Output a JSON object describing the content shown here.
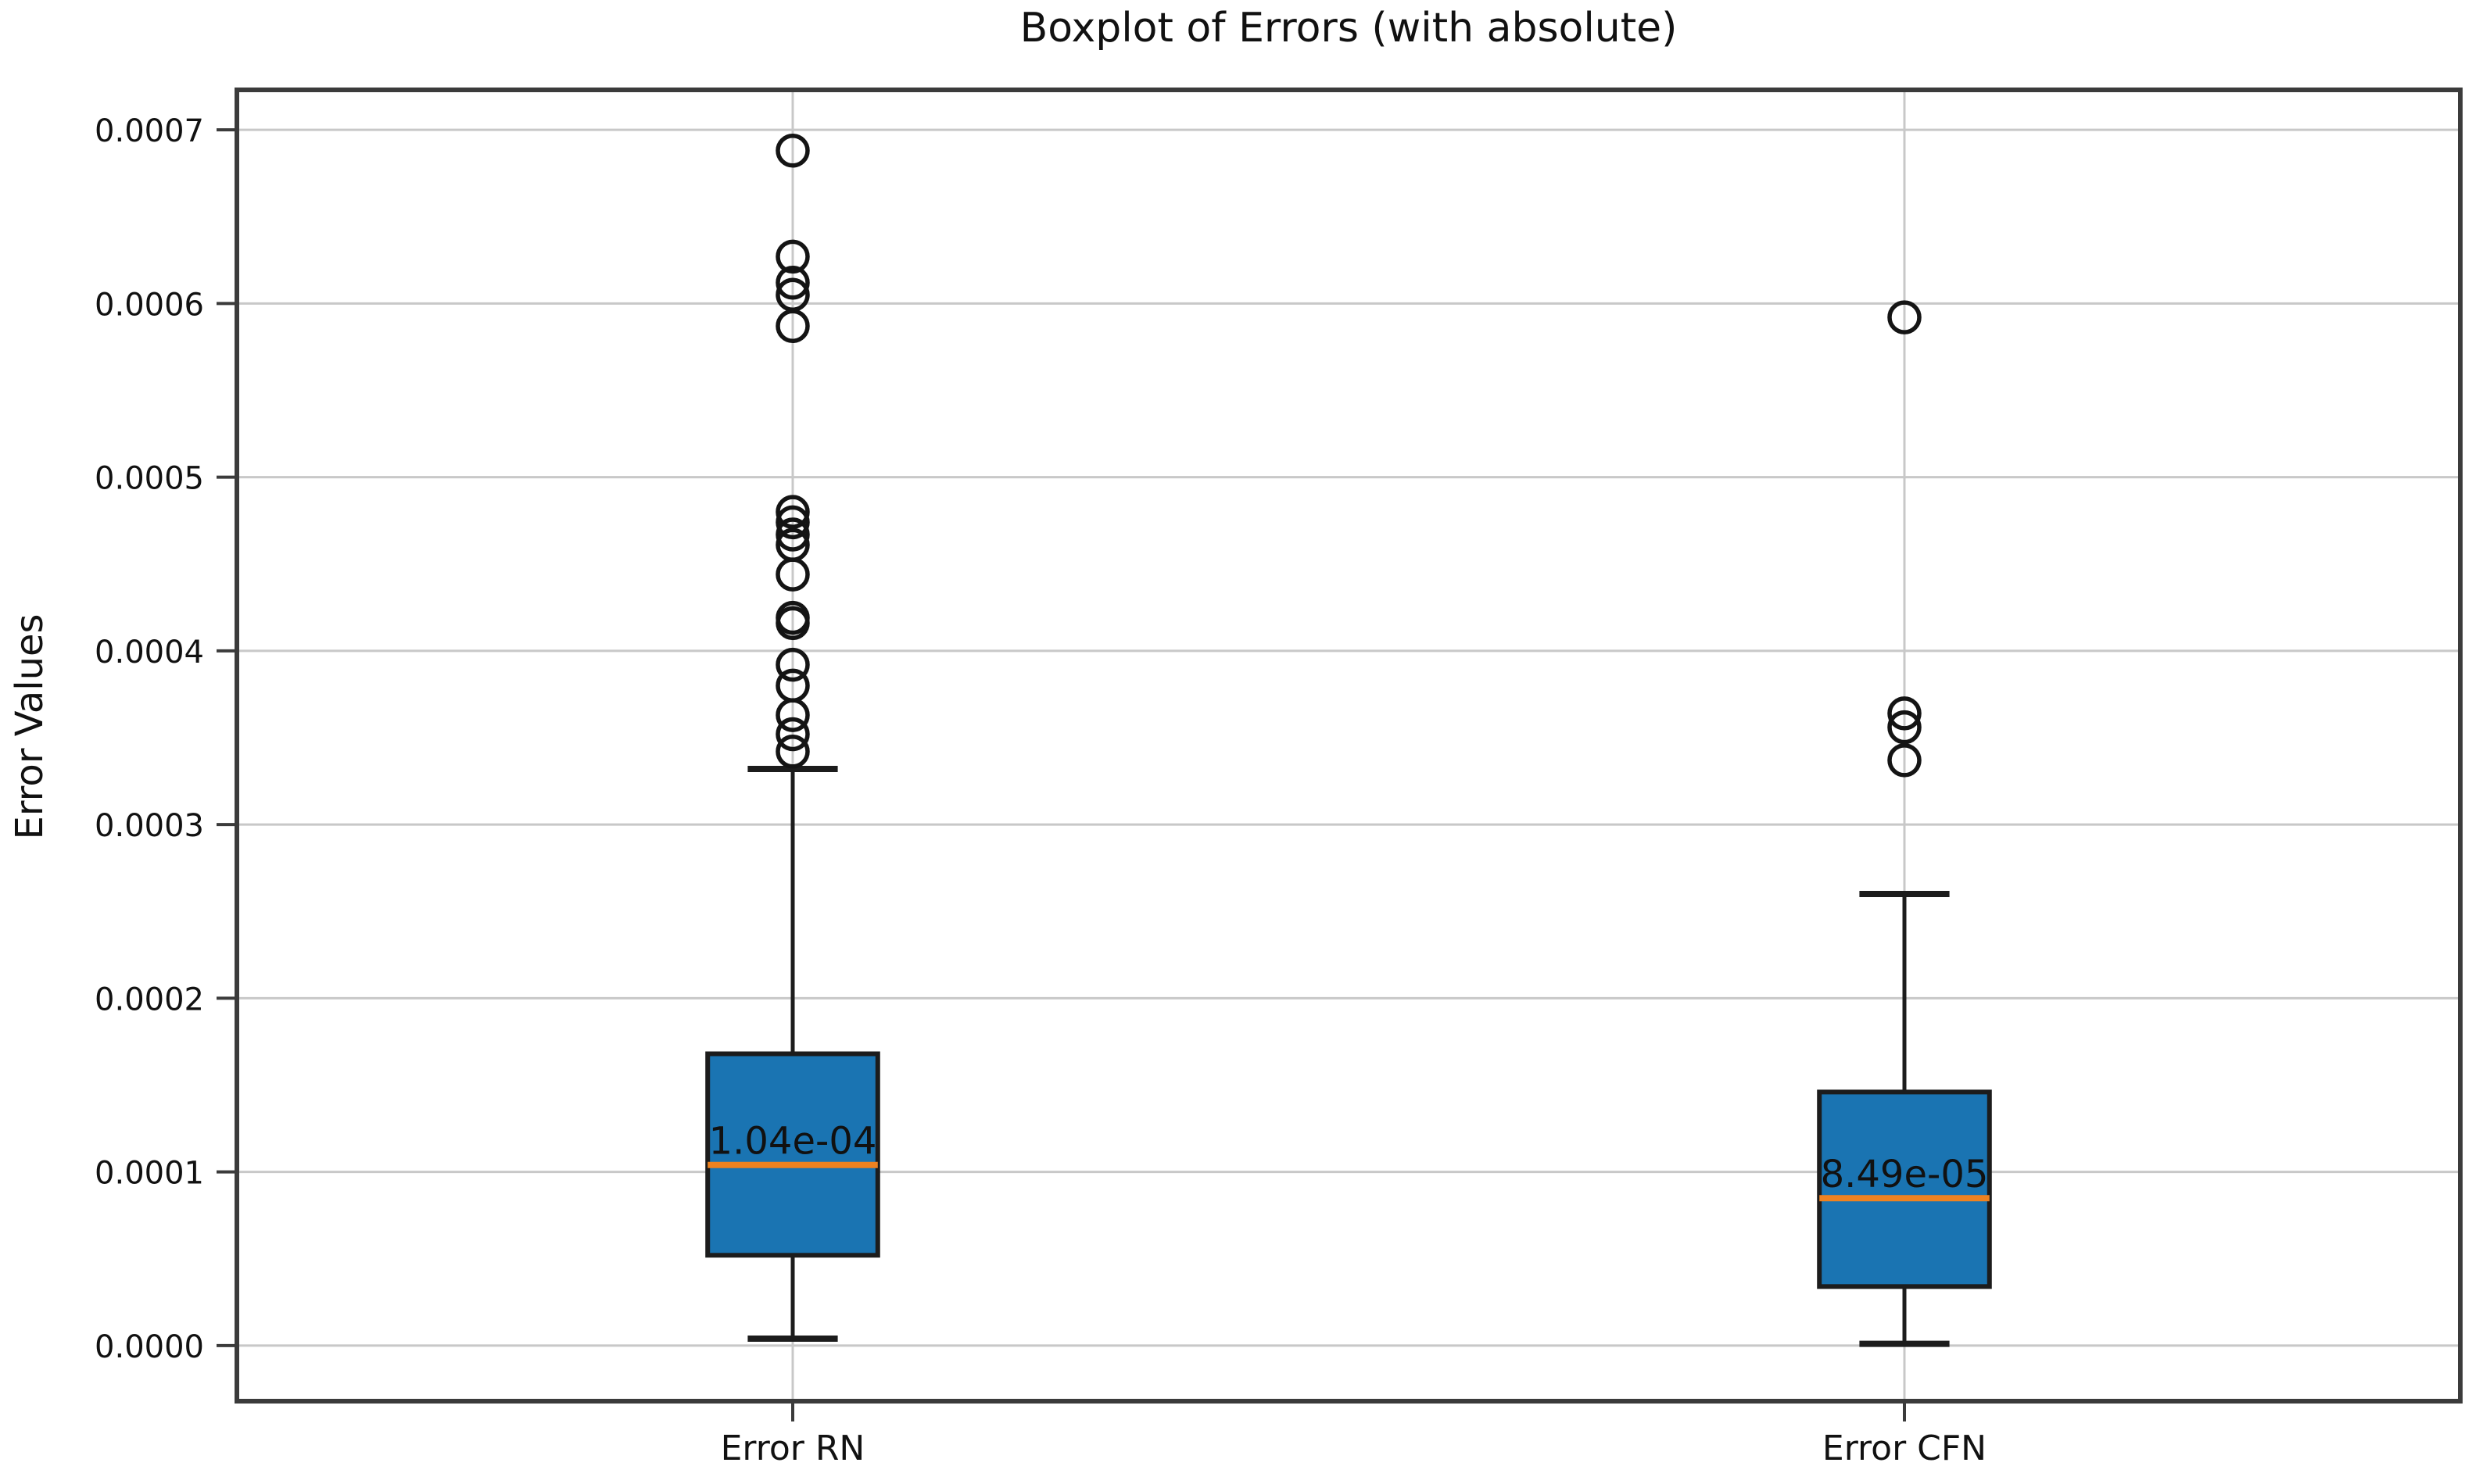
{
  "chart_data": {
    "type": "boxplot",
    "title": "Boxplot of Errors (with absolute)",
    "ylabel": "Error Values",
    "xlabel": "",
    "grid": true,
    "legend": false,
    "categories": [
      "Error RN",
      "Error CFN"
    ],
    "positions": [
      1,
      2
    ],
    "xlim": [
      0.5,
      2.5
    ],
    "ylim": [
      -3.2e-05,
      0.000723
    ],
    "yticks": [
      0.0,
      0.0001,
      0.0002,
      0.0003,
      0.0004,
      0.0005,
      0.0006,
      0.0007
    ],
    "ytick_labels": [
      "0.0000",
      "0.0001",
      "0.0002",
      "0.0003",
      "0.0004",
      "0.0005",
      "0.0006",
      "0.0007"
    ],
    "box_width": 0.153,
    "cap_width": 0.081,
    "series": [
      {
        "name": "Error RN",
        "position": 1,
        "whisker_low": 4e-06,
        "q1": 5.2e-05,
        "median": 0.000104,
        "q3": 0.000168,
        "whisker_high": 0.000332,
        "median_label": "1.04e-04",
        "outliers": [
          0.000688,
          0.000627,
          0.000612,
          0.000605,
          0.000587,
          0.00048,
          0.000474,
          0.000467,
          0.000461,
          0.000444,
          0.000419,
          0.000416,
          0.000392,
          0.00038,
          0.000363,
          0.000352,
          0.000342
        ]
      },
      {
        "name": "Error CFN",
        "position": 2,
        "whisker_low": 1e-06,
        "q1": 3.4e-05,
        "median": 8.49e-05,
        "q3": 0.000146,
        "whisker_high": 0.00026,
        "median_label": "8.49e-05",
        "outliers": [
          0.000592,
          0.000364,
          0.000356,
          0.000337
        ]
      }
    ],
    "colors": {
      "box_fill": "#1a74b2",
      "box_edge": "#1c1c1c",
      "median": "#ee8220",
      "whisker": "#1c1c1c",
      "outlier_edge": "#141414",
      "grid": "#c8c8c8",
      "spine": "#3b3b3b",
      "text": "#111111",
      "background": "#ffffff"
    }
  }
}
